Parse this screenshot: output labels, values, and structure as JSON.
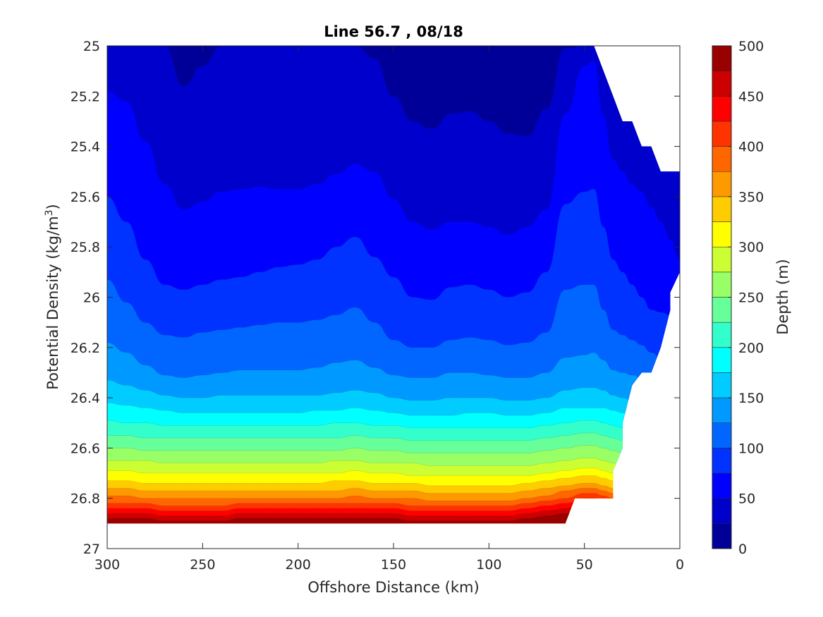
{
  "chart_data": {
    "type": "contourf",
    "title": "Line 56.7 , 08/18",
    "xlabel": "Offshore Distance (km)",
    "ylabel": "Potential Density (kg/m",
    "ylabel_superscript": "3",
    "ylabel_suffix": ")",
    "x_reversed": true,
    "y_reversed": true,
    "xlim": [
      0,
      300
    ],
    "ylim": [
      25,
      27
    ],
    "x_ticks": [
      300,
      250,
      200,
      150,
      100,
      50,
      0
    ],
    "y_ticks": [
      25,
      25.2,
      25.4,
      25.6,
      25.8,
      26,
      26.2,
      26.4,
      26.6,
      26.8,
      27
    ],
    "x_tick_labels": [
      "300",
      "250",
      "200",
      "150",
      "100",
      "50",
      "0"
    ],
    "y_tick_labels": [
      "25",
      "25.2",
      "25.4",
      "25.6",
      "25.8",
      "26",
      "26.2",
      "26.4",
      "26.6",
      "26.8",
      "27"
    ],
    "grid": false,
    "colormap": "jet",
    "colorbar": {
      "label": "Depth (m)",
      "range": [
        0,
        500
      ],
      "tick_values": [
        0,
        50,
        100,
        150,
        200,
        250,
        300,
        350,
        400,
        450,
        500
      ],
      "tick_labels": [
        "0",
        "50",
        "100",
        "150",
        "200",
        "250",
        "300",
        "350",
        "400",
        "450",
        "500"
      ],
      "levels": 20
    },
    "contour_levels": [
      25,
      50,
      75,
      100,
      125,
      150,
      175,
      200,
      225,
      250,
      275,
      300,
      325,
      350,
      375,
      400,
      425,
      450,
      475
    ],
    "x_samples_km": [
      300,
      290,
      280,
      270,
      260,
      250,
      240,
      230,
      220,
      210,
      200,
      190,
      180,
      170,
      160,
      150,
      140,
      130,
      120,
      110,
      100,
      90,
      80,
      70,
      60,
      50,
      45,
      40,
      35,
      30,
      25,
      20,
      15,
      10,
      5,
      0
    ],
    "isopycnal_density_at_level": [
      [
        25.0,
        25.0,
        25.0,
        25.0,
        25.16,
        25.08,
        25.0,
        25.0,
        25.0,
        25.0,
        25.0,
        25.0,
        25.0,
        25.0,
        25.05,
        25.2,
        25.3,
        25.33,
        25.27,
        25.26,
        25.3,
        25.35,
        25.36,
        25.25,
        25.01,
        25.0,
        25.0,
        25.0,
        25.0,
        25.0,
        25.0,
        25.0,
        25.0,
        25.0,
        25.0,
        25.0
      ],
      [
        25.18,
        25.22,
        25.38,
        25.55,
        25.65,
        25.62,
        25.58,
        25.57,
        25.56,
        25.57,
        25.57,
        25.55,
        25.51,
        25.47,
        25.5,
        25.61,
        25.7,
        25.73,
        25.7,
        25.7,
        25.72,
        25.75,
        25.72,
        25.65,
        25.27,
        25.08,
        25.06,
        25.28,
        25.45,
        25.5,
        25.55,
        25.58,
        25.64,
        25.7,
        25.77,
        25.85
      ],
      [
        25.6,
        25.7,
        25.85,
        25.95,
        25.97,
        25.95,
        25.93,
        25.92,
        25.9,
        25.88,
        25.87,
        25.85,
        25.8,
        25.76,
        25.84,
        25.92,
        26.0,
        26.01,
        25.96,
        25.95,
        25.97,
        26.0,
        25.98,
        25.9,
        25.63,
        25.58,
        25.57,
        25.72,
        25.85,
        25.9,
        25.95,
        26.0,
        26.05,
        26.06,
        26.07,
        26.1
      ],
      [
        25.93,
        26.02,
        26.1,
        26.15,
        26.16,
        26.14,
        26.13,
        26.12,
        26.11,
        26.1,
        26.1,
        26.09,
        26.07,
        26.04,
        26.1,
        26.17,
        26.2,
        26.2,
        26.17,
        26.16,
        26.17,
        26.19,
        26.18,
        26.14,
        25.97,
        25.95,
        25.95,
        26.05,
        26.13,
        26.15,
        26.17,
        26.19,
        26.22,
        26.24,
        26.24,
        26.25
      ],
      [
        26.18,
        26.22,
        26.27,
        26.31,
        26.32,
        26.31,
        26.3,
        26.29,
        26.29,
        26.29,
        26.29,
        26.28,
        26.26,
        26.25,
        26.28,
        26.31,
        26.32,
        26.32,
        26.3,
        26.3,
        26.31,
        26.32,
        26.32,
        26.3,
        26.24,
        26.23,
        26.22,
        26.25,
        26.29,
        26.3,
        26.31,
        26.32,
        26.33,
        26.34,
        26.34,
        26.35
      ],
      [
        26.33,
        26.35,
        26.37,
        26.39,
        26.4,
        26.4,
        26.39,
        26.39,
        26.39,
        26.39,
        26.39,
        26.39,
        26.38,
        26.37,
        26.38,
        26.4,
        26.41,
        26.41,
        26.4,
        26.4,
        26.4,
        26.41,
        26.41,
        26.4,
        26.37,
        26.36,
        26.36,
        26.37,
        26.39,
        26.4,
        26.41,
        26.42,
        26.42,
        26.43,
        26.43,
        26.44
      ],
      [
        26.42,
        26.43,
        26.44,
        26.45,
        26.46,
        26.46,
        26.46,
        26.46,
        26.46,
        26.46,
        26.46,
        26.45,
        26.45,
        26.44,
        26.45,
        26.46,
        26.47,
        26.47,
        26.47,
        26.46,
        26.46,
        26.47,
        26.47,
        26.46,
        26.44,
        26.44,
        26.44,
        26.44,
        26.45,
        26.46,
        26.47,
        26.48,
        26.48,
        26.49,
        26.49,
        26.5
      ],
      [
        26.49,
        26.5,
        26.5,
        26.51,
        26.51,
        26.51,
        26.51,
        26.51,
        26.51,
        26.51,
        26.51,
        26.51,
        26.5,
        26.5,
        26.51,
        26.51,
        26.52,
        26.52,
        26.52,
        26.52,
        26.52,
        26.52,
        26.52,
        26.51,
        26.5,
        26.49,
        26.49,
        26.5,
        26.51,
        26.52,
        26.52,
        26.53,
        26.53,
        26.54,
        26.54,
        26.55
      ],
      [
        26.55,
        26.55,
        26.56,
        26.56,
        26.56,
        26.56,
        26.56,
        26.56,
        26.56,
        26.56,
        26.56,
        26.56,
        26.56,
        26.55,
        26.56,
        26.56,
        26.57,
        26.57,
        26.57,
        26.57,
        26.57,
        26.57,
        26.57,
        26.56,
        26.55,
        26.54,
        26.54,
        26.55,
        26.56,
        26.57,
        26.57,
        26.58,
        26.58,
        26.59,
        26.59,
        26.6
      ],
      [
        26.6,
        26.6,
        26.61,
        26.61,
        26.61,
        26.61,
        26.61,
        26.61,
        26.61,
        26.61,
        26.61,
        26.61,
        26.61,
        26.6,
        26.61,
        26.61,
        26.62,
        26.62,
        26.62,
        26.62,
        26.62,
        26.62,
        26.62,
        26.61,
        26.6,
        26.59,
        26.59,
        26.6,
        26.61,
        26.62,
        26.62,
        26.63,
        26.63,
        26.64,
        26.64,
        26.65
      ],
      [
        26.65,
        26.65,
        26.65,
        26.66,
        26.66,
        26.66,
        26.66,
        26.66,
        26.66,
        26.66,
        26.66,
        26.66,
        26.65,
        26.65,
        26.66,
        26.66,
        26.66,
        26.67,
        26.67,
        26.67,
        26.67,
        26.67,
        26.67,
        26.66,
        26.65,
        26.64,
        26.64,
        26.65,
        26.66,
        26.67,
        26.67,
        26.68,
        26.68,
        26.69,
        26.69,
        26.7
      ],
      [
        26.69,
        26.69,
        26.7,
        26.7,
        26.7,
        26.7,
        26.7,
        26.7,
        26.7,
        26.7,
        26.7,
        26.7,
        26.7,
        26.69,
        26.7,
        26.7,
        26.71,
        26.71,
        26.71,
        26.71,
        26.71,
        26.71,
        26.71,
        26.7,
        26.69,
        26.68,
        26.68,
        26.69,
        26.7,
        26.71,
        26.71,
        26.72,
        26.72,
        26.73,
        26.73,
        26.74
      ],
      [
        26.73,
        26.73,
        26.74,
        26.74,
        26.74,
        26.74,
        26.74,
        26.74,
        26.74,
        26.74,
        26.74,
        26.74,
        26.73,
        26.73,
        26.74,
        26.74,
        26.74,
        26.75,
        26.75,
        26.75,
        26.75,
        26.75,
        26.74,
        26.73,
        26.72,
        26.71,
        26.71,
        26.72,
        26.73,
        26.74,
        26.75,
        26.75,
        26.76,
        26.76,
        26.77,
        26.77
      ],
      [
        26.76,
        26.76,
        26.77,
        26.77,
        26.77,
        26.77,
        26.77,
        26.77,
        26.77,
        26.77,
        26.77,
        26.77,
        26.77,
        26.76,
        26.77,
        26.77,
        26.77,
        26.78,
        26.78,
        26.78,
        26.78,
        26.78,
        26.77,
        26.76,
        26.75,
        26.74,
        26.74,
        26.75,
        26.76,
        26.77,
        26.78,
        26.78,
        26.79,
        26.79,
        26.8,
        26.8
      ],
      [
        26.79,
        26.79,
        26.8,
        26.8,
        26.8,
        26.8,
        26.8,
        26.8,
        26.8,
        26.8,
        26.8,
        26.8,
        26.8,
        26.79,
        26.8,
        26.8,
        26.8,
        26.81,
        26.81,
        26.81,
        26.81,
        26.81,
        26.8,
        26.79,
        26.77,
        26.76,
        26.76,
        26.77,
        26.78,
        26.79,
        26.8,
        26.81,
        26.81,
        26.82,
        26.82,
        26.83
      ],
      [
        26.82,
        26.82,
        26.82,
        26.83,
        26.83,
        26.83,
        26.83,
        26.82,
        26.82,
        26.82,
        26.82,
        26.82,
        26.82,
        26.82,
        26.82,
        26.82,
        26.83,
        26.83,
        26.83,
        26.83,
        26.83,
        26.83,
        26.82,
        26.81,
        26.8,
        26.78,
        26.78,
        26.79,
        26.8,
        26.81,
        26.82,
        26.83,
        26.83,
        26.84,
        26.84,
        26.85
      ],
      [
        26.84,
        26.84,
        26.84,
        26.85,
        26.85,
        26.85,
        26.85,
        26.84,
        26.84,
        26.84,
        26.84,
        26.84,
        26.84,
        26.84,
        26.84,
        26.84,
        26.85,
        26.85,
        26.85,
        26.85,
        26.85,
        26.85,
        26.84,
        26.83,
        26.82,
        26.8,
        26.8,
        26.81,
        26.82,
        26.83,
        26.84,
        26.85,
        26.85,
        26.86,
        26.86,
        26.87
      ],
      [
        26.86,
        26.86,
        26.86,
        26.87,
        26.87,
        26.87,
        26.87,
        26.86,
        26.86,
        26.86,
        26.86,
        26.86,
        26.86,
        26.86,
        26.86,
        26.86,
        26.87,
        26.87,
        26.87,
        26.87,
        26.87,
        26.87,
        26.86,
        26.85,
        26.84,
        26.82,
        26.82,
        26.83,
        26.84,
        26.85,
        26.86,
        26.87,
        26.87,
        26.88,
        26.88,
        26.89
      ],
      [
        26.88,
        26.88,
        26.88,
        26.89,
        26.89,
        26.89,
        26.89,
        26.88,
        26.88,
        26.88,
        26.88,
        26.88,
        26.88,
        26.88,
        26.88,
        26.88,
        26.89,
        26.89,
        26.89,
        26.89,
        26.89,
        26.89,
        26.88,
        26.87,
        26.86,
        26.84,
        26.84,
        26.85,
        26.86,
        26.87,
        26.88,
        26.89,
        26.89,
        26.9,
        26.9,
        26.91
      ]
    ],
    "data_region_boundary": {
      "deep_limit_density": [
        [
          300,
          26.9
        ],
        [
          60,
          26.9
        ],
        [
          55,
          26.8
        ],
        [
          35,
          26.8
        ],
        [
          35,
          26.69
        ],
        [
          30,
          26.6
        ],
        [
          30,
          26.5
        ],
        [
          25,
          26.35
        ],
        [
          20,
          26.3
        ],
        [
          15,
          26.3
        ],
        [
          10,
          26.2
        ],
        [
          5,
          26.05
        ],
        [
          5,
          25.98
        ],
        [
          0,
          25.9
        ]
      ],
      "shallow_limit_density": [
        [
          300,
          25.0
        ],
        [
          45,
          25.0
        ],
        [
          35,
          25.2
        ],
        [
          30,
          25.3
        ],
        [
          25,
          25.3
        ],
        [
          20,
          25.4
        ],
        [
          15,
          25.4
        ],
        [
          10,
          25.5
        ],
        [
          0,
          25.5
        ]
      ]
    }
  }
}
